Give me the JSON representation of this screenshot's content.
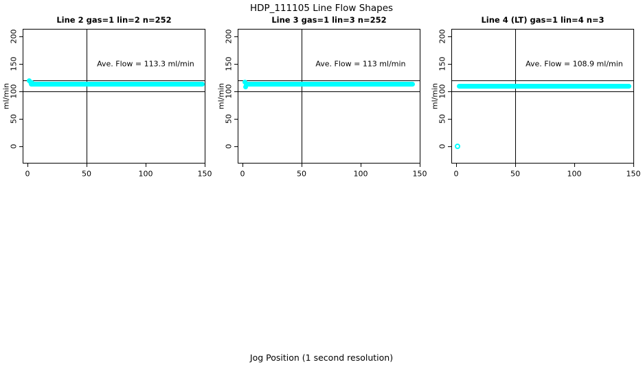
{
  "figure": {
    "title": "HDP_111105  Line Flow Shapes",
    "xlabel": "Jog Position (1 second resolution)",
    "background_color": "#ffffff",
    "point_color": "#00ffff",
    "axis_color": "#000000"
  },
  "chart_data": [
    {
      "type": "scatter",
      "title": "Line 2 gas=1 lin=2 n=252",
      "ylabel": "ml/min",
      "annotation": "Ave. Flow =  113.3  ml/min",
      "ave_flow_ml_min": 113.3,
      "n": 252,
      "x_ticks": [
        0,
        50,
        100,
        150
      ],
      "y_ticks": [
        0,
        50,
        100,
        150,
        200
      ],
      "xlim": [
        -4,
        150.6
      ],
      "ylim": [
        -31.25,
        213.75
      ],
      "grid": false,
      "vline_x": 50,
      "hlines_y": [
        120,
        100
      ],
      "band": {
        "level": 113.3,
        "x_start": 1,
        "x_end": 152
      },
      "lead_points": [
        [
          1.5,
          119.5
        ],
        [
          2.5,
          117
        ],
        [
          4,
          115.5
        ]
      ],
      "outlier_points": []
    },
    {
      "type": "scatter",
      "title": "Line 3 gas=1 lin=3 n=252",
      "ylabel": "ml/min",
      "annotation": "Ave. Flow =  113  ml/min",
      "ave_flow_ml_min": 113,
      "n": 252,
      "x_ticks": [
        0,
        50,
        100,
        150
      ],
      "y_ticks": [
        0,
        50,
        100,
        150,
        200
      ],
      "xlim": [
        -4,
        150.6
      ],
      "ylim": [
        -31.25,
        213.75
      ],
      "grid": false,
      "vline_x": 50,
      "hlines_y": [
        120,
        100
      ],
      "band": {
        "level": 113,
        "x_start": 1.5,
        "x_end": 146
      },
      "lead_points": [
        [
          2,
          116.5
        ],
        [
          2.5,
          108.5
        ]
      ],
      "outlier_points": []
    },
    {
      "type": "scatter",
      "title": "Line 4 (LT) gas=1 lin=4 n=3",
      "ylabel": "ml/min",
      "annotation": "Ave. Flow =  108.9  ml/min",
      "ave_flow_ml_min": 108.9,
      "n": 3,
      "x_ticks": [
        0,
        50,
        100,
        150
      ],
      "y_ticks": [
        0,
        50,
        100,
        150,
        200
      ],
      "xlim": [
        -4,
        150.6
      ],
      "ylim": [
        -31.25,
        213.75
      ],
      "grid": false,
      "vline_x": 50,
      "hlines_y": [
        120,
        100
      ],
      "band": {
        "level": 108.9,
        "x_start": 0.5,
        "x_end": 148
      },
      "lead_points": [],
      "outlier_points": [
        [
          1.5,
          0
        ]
      ]
    }
  ]
}
